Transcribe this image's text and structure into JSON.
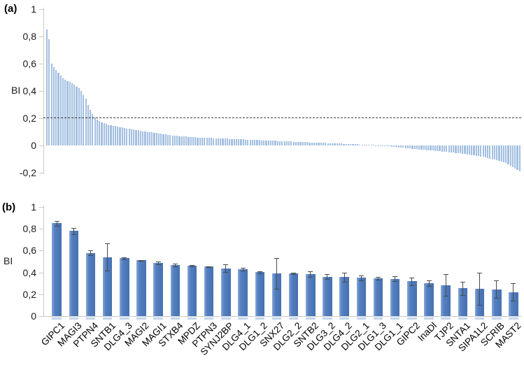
{
  "colors": {
    "bar_a": "#a3bfe0",
    "bar_b_light": "#85a8d9",
    "bar_b_dark": "#4571b1",
    "error_bar": "#4a4a4a",
    "axis": "#c9c9c9",
    "threshold_line": "#3c3c3c",
    "category_stub": "#c2d4ea",
    "text": "#1a1a1a"
  },
  "chart_data": [
    {
      "id": "a",
      "type": "bar",
      "panel_label": "(a)",
      "ylabel": "BI",
      "ytick_labels": [
        "1",
        "0,8",
        "0,6",
        "0,4",
        "0,2",
        "0",
        "-0,2"
      ],
      "ytick_values": [
        1,
        0.8,
        0.6,
        0.4,
        0.2,
        0,
        -0.2
      ],
      "ylim": [
        -0.2,
        1
      ],
      "grid": false,
      "legend": "none",
      "threshold_line": 0.2,
      "n_bars": 208,
      "values": [
        0.85,
        0.78,
        0.6,
        0.575,
        0.555,
        0.535,
        0.515,
        0.49,
        0.48,
        0.47,
        0.465,
        0.455,
        0.445,
        0.43,
        0.42,
        0.4,
        0.37,
        0.345,
        0.3,
        0.26,
        0.23,
        0.205,
        0.19,
        0.18,
        0.17,
        0.165,
        0.16,
        0.15,
        0.148,
        0.145,
        0.142,
        0.138,
        0.135,
        0.132,
        0.128,
        0.125,
        0.122,
        0.12,
        0.118,
        0.115,
        0.112,
        0.109,
        0.105,
        0.102,
        0.1,
        0.097,
        0.095,
        0.092,
        0.09,
        0.087,
        0.085,
        0.082,
        0.08,
        0.078,
        0.076,
        0.074,
        0.072,
        0.071,
        0.069,
        0.067,
        0.066,
        0.065,
        0.063,
        0.062,
        0.061,
        0.06,
        0.059,
        0.058,
        0.057,
        0.057,
        0.056,
        0.055,
        0.054,
        0.053,
        0.052,
        0.052,
        0.051,
        0.05,
        0.049,
        0.049,
        0.048,
        0.047,
        0.047,
        0.046,
        0.045,
        0.044,
        0.044,
        0.043,
        0.042,
        0.042,
        0.041,
        0.04,
        0.039,
        0.039,
        0.038,
        0.037,
        0.037,
        0.036,
        0.035,
        0.034,
        0.034,
        0.033,
        0.032,
        0.032,
        0.031,
        0.03,
        0.029,
        0.029,
        0.028,
        0.027,
        0.027,
        0.026,
        0.025,
        0.024,
        0.024,
        0.023,
        0.022,
        0.022,
        0.021,
        0.02,
        0.019,
        0.019,
        0.018,
        0.017,
        0.017,
        0.016,
        0.015,
        0.014,
        0.013,
        0.013,
        0.012,
        0.011,
        0.011,
        0.01,
        0.009,
        0.008,
        0.008,
        0.007,
        0.006,
        0.005,
        0.005,
        0.004,
        0.003,
        0.003,
        0.002,
        0.001,
        0.001,
        0.0,
        -0.002,
        -0.004,
        -0.006,
        -0.008,
        -0.01,
        -0.012,
        -0.014,
        -0.016,
        -0.017,
        -0.019,
        -0.021,
        -0.022,
        -0.024,
        -0.026,
        -0.028,
        -0.029,
        -0.031,
        -0.032,
        -0.034,
        -0.035,
        -0.037,
        -0.038,
        -0.04,
        -0.041,
        -0.043,
        -0.044,
        -0.046,
        -0.047,
        -0.049,
        -0.05,
        -0.052,
        -0.054,
        -0.056,
        -0.058,
        -0.06,
        -0.063,
        -0.065,
        -0.068,
        -0.07,
        -0.072,
        -0.075,
        -0.077,
        -0.08,
        -0.084,
        -0.088,
        -0.092,
        -0.096,
        -0.1,
        -0.105,
        -0.11,
        -0.115,
        -0.12,
        -0.125,
        -0.13,
        -0.14,
        -0.15,
        -0.16,
        -0.17,
        -0.18,
        -0.19
      ]
    },
    {
      "id": "b",
      "type": "bar",
      "panel_label": "(b)",
      "ylabel": "BI",
      "ytick_labels": [
        "1",
        "0,8",
        "0,6",
        "0,4",
        "0,2",
        "0"
      ],
      "ytick_values": [
        1,
        0.8,
        0.6,
        0.4,
        0.2,
        0
      ],
      "ylim": [
        0,
        1
      ],
      "grid": false,
      "legend": "none",
      "error_bars": true,
      "categories": [
        "GIPC1",
        "MAGI3",
        "PTPN4",
        "SNTB1",
        "DLG4_3",
        "MAGI2",
        "MAGI1",
        "STXB4",
        "MPDZ",
        "PTPN3",
        "SYNJ2BP",
        "DLG4_1",
        "DLG1_2",
        "SNX27",
        "DLG2_2",
        "SNTB2",
        "DLG3_2",
        "DLG4_2",
        "DLG2_1",
        "DLG1_3",
        "DLG1_1",
        "GIPC2",
        "InaDl",
        "TJP2",
        "SNTA1",
        "SIPA1L2",
        "SCRIB",
        "MAST2"
      ],
      "values": [
        0.85,
        0.78,
        0.58,
        0.54,
        0.53,
        0.51,
        0.485,
        0.47,
        0.462,
        0.452,
        0.437,
        0.43,
        0.402,
        0.39,
        0.39,
        0.385,
        0.362,
        0.357,
        0.352,
        0.348,
        0.342,
        0.318,
        0.3,
        0.285,
        0.255,
        0.25,
        0.245,
        0.22
      ],
      "errors": [
        0.02,
        0.03,
        0.025,
        0.125,
        0.01,
        0.006,
        0.012,
        0.012,
        0.006,
        0.005,
        0.035,
        0.015,
        0.008,
        0.14,
        0.006,
        0.025,
        0.022,
        0.04,
        0.022,
        0.012,
        0.022,
        0.035,
        0.025,
        0.1,
        0.06,
        0.15,
        0.08,
        0.08
      ]
    }
  ]
}
